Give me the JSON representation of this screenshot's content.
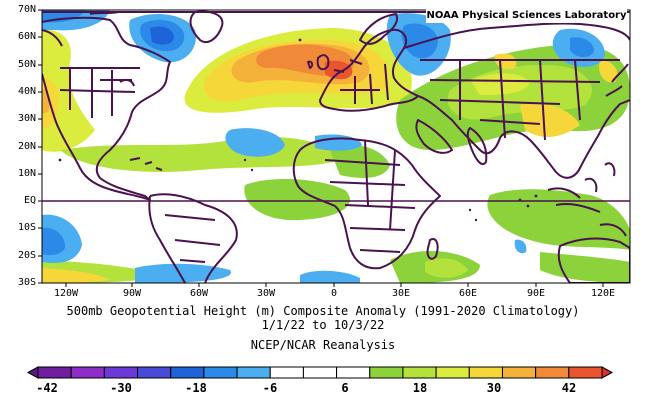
{
  "map": {
    "lat_labels": [
      "70N",
      "60N",
      "50N",
      "40N",
      "30N",
      "20N",
      "10N",
      "EQ",
      "10S",
      "20S",
      "30S"
    ],
    "lon_labels": [
      "120W",
      "90W",
      "60W",
      "30W",
      "0",
      "30E",
      "60E",
      "90E",
      "120E"
    ],
    "credit": "NOAA Physical Sciences Laboratory"
  },
  "title": {
    "line1": "500mb Geopotential Height (m) Composite Anomaly (1991-2020 Climatology)",
    "line2": "1/1/22  to 10/3/22",
    "line3": "NCEP/NCAR Reanalysis"
  },
  "colorbar": {
    "labels": [
      "-42",
      "-30",
      "-18",
      "-6",
      "6",
      "18",
      "30",
      "42"
    ],
    "colors": [
      "#6f1f9e",
      "#8e2dc7",
      "#6d38d8",
      "#4a4ad8",
      "#1f63d8",
      "#2b8ae8",
      "#4aaef0",
      "#ffffff",
      "#ffffff",
      "#ffffff",
      "#8cd23a",
      "#b4e23c",
      "#dcec3e",
      "#f6d73a",
      "#f4b23a",
      "#f08a38",
      "#e8552e"
    ]
  }
}
